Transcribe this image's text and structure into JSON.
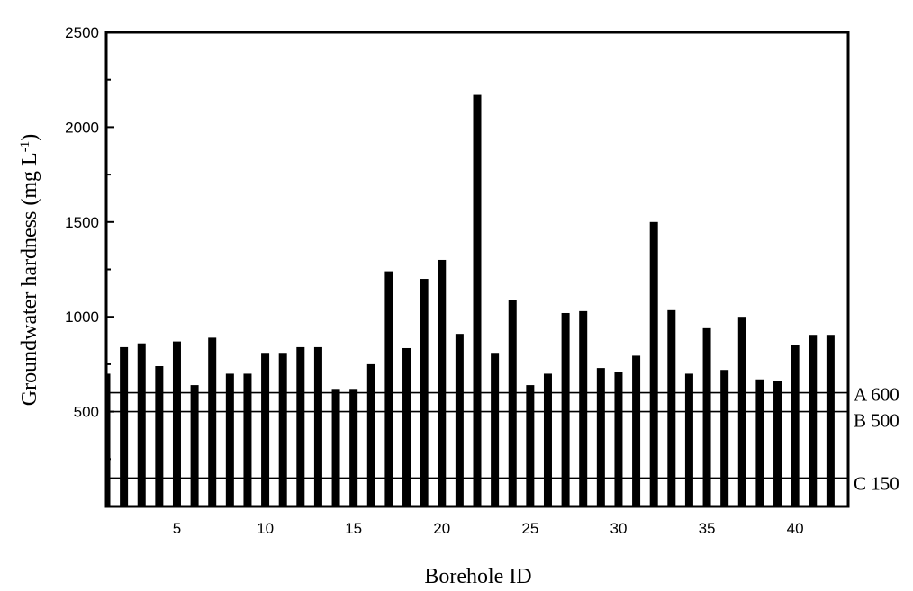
{
  "chart_data": {
    "type": "bar",
    "xlabel": "Borehole ID",
    "ylabel": "Groundwater hardness (mg L",
    "ylabel_superscript": "-1",
    "ylabel_suffix": ")",
    "xlim": [
      1,
      43
    ],
    "ylim": [
      0,
      2500
    ],
    "x_ticks": [
      5,
      10,
      15,
      20,
      25,
      30,
      35,
      40
    ],
    "y_ticks": [
      500,
      1000,
      1500,
      2000,
      2500
    ],
    "grid": false,
    "x": [
      1,
      2,
      3,
      4,
      5,
      6,
      7,
      8,
      9,
      10,
      11,
      12,
      13,
      14,
      15,
      16,
      17,
      18,
      19,
      20,
      21,
      22,
      23,
      24,
      25,
      26,
      27,
      28,
      29,
      30,
      31,
      32,
      33,
      34,
      35,
      36,
      37,
      38,
      39,
      40,
      41,
      42
    ],
    "values": [
      700,
      840,
      860,
      740,
      870,
      640,
      890,
      700,
      700,
      810,
      810,
      840,
      840,
      620,
      620,
      750,
      1240,
      835,
      1200,
      1300,
      910,
      2170,
      810,
      1090,
      640,
      700,
      1020,
      1030,
      730,
      710,
      795,
      1500,
      1035,
      700,
      940,
      720,
      1000,
      670,
      660,
      850,
      905,
      905
    ],
    "reference_lines": [
      {
        "label": "A 600",
        "value": 600
      },
      {
        "label": "B 500",
        "value": 500
      },
      {
        "label": "C 150",
        "value": 150
      }
    ],
    "colors": {
      "bar": "#000000",
      "axis": "#000000",
      "background": "#ffffff"
    }
  }
}
